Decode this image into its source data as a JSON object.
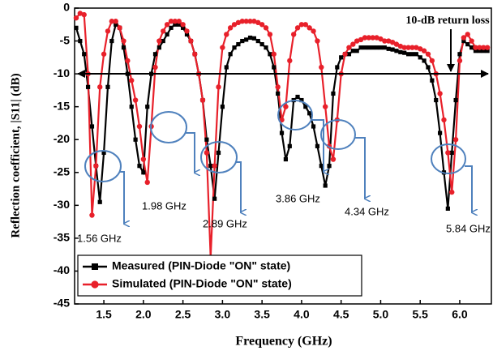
{
  "chart_data": {
    "type": "line",
    "xlabel": "Frequency (GHz)",
    "ylabel": "Reflection coefficient, |S11| (dB)",
    "x": [
      1.15,
      1.2,
      1.25,
      1.3,
      1.35,
      1.4,
      1.45,
      1.5,
      1.55,
      1.6,
      1.65,
      1.7,
      1.75,
      1.8,
      1.85,
      1.9,
      1.95,
      2.0,
      2.05,
      2.1,
      2.15,
      2.2,
      2.25,
      2.3,
      2.35,
      2.4,
      2.45,
      2.5,
      2.55,
      2.6,
      2.65,
      2.7,
      2.75,
      2.8,
      2.85,
      2.9,
      2.95,
      3.0,
      3.05,
      3.1,
      3.15,
      3.2,
      3.25,
      3.3,
      3.35,
      3.4,
      3.45,
      3.5,
      3.55,
      3.6,
      3.65,
      3.7,
      3.75,
      3.8,
      3.85,
      3.9,
      3.95,
      4.0,
      4.05,
      4.1,
      4.15,
      4.2,
      4.25,
      4.3,
      4.35,
      4.4,
      4.45,
      4.5,
      4.55,
      4.6,
      4.65,
      4.7,
      4.75,
      4.8,
      4.85,
      4.9,
      4.95,
      5.0,
      5.05,
      5.1,
      5.15,
      5.2,
      5.25,
      5.3,
      5.35,
      5.4,
      5.45,
      5.5,
      5.55,
      5.6,
      5.65,
      5.7,
      5.75,
      5.8,
      5.85,
      5.9,
      5.95,
      6.0,
      6.05,
      6.1,
      6.15,
      6.2,
      6.25,
      6.3,
      6.35
    ],
    "series": [
      {
        "name": "Measured (PIN-Diode \"ON\" state)",
        "color": "#000000",
        "marker": "square",
        "values": [
          -3,
          -5,
          -7,
          -12,
          -18,
          -24,
          -29.5,
          -22,
          -12,
          -5,
          -2.5,
          -3,
          -6,
          -10,
          -15,
          -20,
          -24,
          -25,
          -15,
          -10,
          -7,
          -6,
          -5,
          -4,
          -3,
          -2.5,
          -2.5,
          -3,
          -4,
          -5,
          -7,
          -10,
          -14,
          -20,
          -24,
          -29,
          -22,
          -15,
          -9,
          -7,
          -6,
          -5.5,
          -5,
          -4.8,
          -4.5,
          -4.6,
          -5,
          -5.5,
          -6,
          -7,
          -9,
          -13,
          -19,
          -23,
          -21,
          -14,
          -13.5,
          -14,
          -15,
          -16,
          -18,
          -21,
          -24,
          -27,
          -24,
          -13,
          -9,
          -7.5,
          -7,
          -7,
          -6.5,
          -6.5,
          -6,
          -6,
          -6,
          -6,
          -6,
          -6,
          -6,
          -6.2,
          -6.3,
          -6.5,
          -6.7,
          -6.8,
          -7,
          -7,
          -7,
          -7.5,
          -8,
          -9,
          -11,
          -14,
          -19,
          -25,
          -30.5,
          -22,
          -14,
          -7,
          -5,
          -5.5,
          -6,
          -6.5,
          -6.5,
          -6.5,
          -6.5
        ]
      },
      {
        "name": "Simulated (PIN-Diode \"ON\" state)",
        "color": "#e8202a",
        "marker": "circle",
        "values": [
          -1.5,
          -0.8,
          -1,
          -10,
          -31.5,
          -24,
          -12,
          -7,
          -3.5,
          -2,
          -2,
          -3,
          -5,
          -8,
          -11,
          -14,
          -18,
          -23,
          -26.5,
          -18,
          -9,
          -5,
          -3.5,
          -2.5,
          -2,
          -2,
          -2,
          -2.5,
          -3.5,
          -5,
          -7,
          -10,
          -14,
          -22,
          -38,
          -24,
          -12,
          -6,
          -4,
          -3,
          -2.5,
          -2.2,
          -2,
          -2,
          -2,
          -2,
          -2.2,
          -2.5,
          -3,
          -4,
          -7,
          -12,
          -17,
          -15,
          -8,
          -4,
          -3,
          -2.5,
          -2.5,
          -3,
          -3.5,
          -5,
          -9,
          -15,
          -21,
          -23,
          -17,
          -10,
          -7,
          -6,
          -5.5,
          -5,
          -4.8,
          -4.5,
          -4.5,
          -4.5,
          -4.5,
          -4.7,
          -5,
          -5,
          -5.2,
          -5.5,
          -5.8,
          -6,
          -6,
          -6,
          -6,
          -6.2,
          -6.5,
          -7,
          -8,
          -10,
          -13,
          -17,
          -22,
          -28,
          -20,
          -8,
          -4.5,
          -4,
          -5,
          -6,
          -6,
          -6,
          -6
        ]
      }
    ],
    "xlim": [
      1.13,
      6.4
    ],
    "ylim": [
      -45,
      0
    ],
    "xticks": [
      1.5,
      {
        "value": 2,
        "label": "2.0"
      },
      2.5,
      {
        "value": 3,
        "label": "3.0"
      },
      3.5,
      {
        "value": 4,
        "label": "4.0"
      },
      4.5,
      {
        "value": 5,
        "label": "5.0"
      },
      5.5,
      {
        "value": 6,
        "label": "6.0"
      }
    ],
    "yticks": [
      0,
      -5,
      -10,
      -15,
      -20,
      -25,
      -30,
      -35,
      -40,
      -45
    ],
    "legend": "lower left",
    "annotations": [
      "1.56 GHz",
      "1.98 GHz",
      "2.89 GHz",
      "3.86 GHz",
      "4.34 GHz",
      "5.84 GHz",
      "10-dB return loss"
    ]
  }
}
